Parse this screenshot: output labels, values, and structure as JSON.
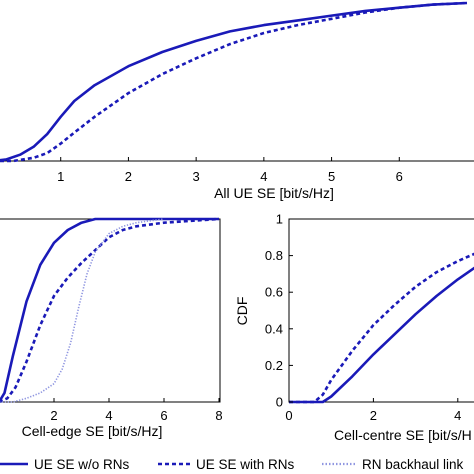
{
  "chart_data": [
    {
      "type": "line",
      "panel": "top",
      "xlabel": "All UE SE [bit/s/Hz]",
      "ylabel": "",
      "xlim": [
        0,
        7
      ],
      "ylim": [
        0,
        1
      ],
      "xticks": [
        "1",
        "2",
        "3",
        "4",
        "5",
        "6"
      ],
      "grid": false,
      "series": [
        {
          "name": "UE SE w/o RNs",
          "style": "solid",
          "x": [
            0.0,
            0.2,
            0.4,
            0.6,
            0.8,
            1.0,
            1.2,
            1.5,
            2.0,
            2.5,
            3.0,
            3.5,
            4.0,
            4.5,
            5.0,
            5.5,
            6.0,
            6.5,
            7.0
          ],
          "y": [
            0.0,
            0.01,
            0.04,
            0.09,
            0.17,
            0.28,
            0.38,
            0.48,
            0.6,
            0.69,
            0.76,
            0.82,
            0.86,
            0.89,
            0.92,
            0.95,
            0.97,
            0.99,
            1.0
          ]
        },
        {
          "name": "UE SE with RNs",
          "style": "dashed",
          "x": [
            0.0,
            0.3,
            0.6,
            0.8,
            1.0,
            1.2,
            1.5,
            2.0,
            2.5,
            3.0,
            3.5,
            4.0,
            4.5,
            5.0,
            5.5,
            6.0,
            6.5,
            7.0
          ],
          "y": [
            0.0,
            0.0,
            0.02,
            0.05,
            0.11,
            0.18,
            0.28,
            0.43,
            0.55,
            0.65,
            0.74,
            0.81,
            0.86,
            0.9,
            0.94,
            0.97,
            0.99,
            1.0
          ]
        }
      ]
    },
    {
      "type": "line",
      "panel": "bottom-left",
      "xlabel": "Cell-edge SE [bit/s/Hz]",
      "ylabel": "",
      "xlim": [
        0,
        8
      ],
      "ylim": [
        0,
        1
      ],
      "xticks": [
        "2",
        "4",
        "6",
        "8"
      ],
      "grid": false,
      "series": [
        {
          "name": "UE SE w/o RNs",
          "style": "solid",
          "x": [
            0.0,
            0.2,
            0.5,
            1.0,
            1.5,
            2.0,
            2.5,
            3.0,
            3.5,
            4.0,
            5.0,
            6.0,
            8.0
          ],
          "y": [
            0.0,
            0.05,
            0.25,
            0.55,
            0.75,
            0.87,
            0.94,
            0.98,
            1.0,
            1.0,
            1.0,
            1.0,
            1.0
          ]
        },
        {
          "name": "UE SE with RNs",
          "style": "dashed",
          "x": [
            0.0,
            0.3,
            0.6,
            1.0,
            1.5,
            2.0,
            2.5,
            3.0,
            3.5,
            4.0,
            4.5,
            5.0,
            6.0,
            7.0,
            8.0
          ],
          "y": [
            0.0,
            0.02,
            0.08,
            0.22,
            0.42,
            0.58,
            0.68,
            0.76,
            0.83,
            0.9,
            0.94,
            0.96,
            0.98,
            0.99,
            1.0
          ]
        },
        {
          "name": "RN backhaul link",
          "style": "dotted",
          "x": [
            0.0,
            0.5,
            1.0,
            1.5,
            2.0,
            2.3,
            2.6,
            2.9,
            3.2,
            3.5,
            4.0,
            4.5,
            5.0,
            5.5,
            6.0
          ],
          "y": [
            0.0,
            0.0,
            0.02,
            0.05,
            0.1,
            0.18,
            0.32,
            0.52,
            0.7,
            0.82,
            0.92,
            0.96,
            0.98,
            0.99,
            1.0
          ]
        }
      ]
    },
    {
      "type": "line",
      "panel": "bottom-right",
      "xlabel": "Cell-centre SE [bit/s/H",
      "ylabel": "CDF",
      "xlim": [
        0,
        5
      ],
      "ylim": [
        0,
        1
      ],
      "xticks": [
        "0",
        "2",
        "4"
      ],
      "yticks": [
        "0",
        "0.2",
        "0.4",
        "0.6",
        "0.8",
        "1"
      ],
      "grid": false,
      "series": [
        {
          "name": "UE SE w/o RNs",
          "style": "solid",
          "x": [
            0.0,
            0.8,
            1.0,
            1.5,
            2.0,
            2.5,
            3.0,
            3.5,
            4.0,
            4.5,
            5.0
          ],
          "y": [
            0.0,
            0.0,
            0.03,
            0.14,
            0.26,
            0.37,
            0.48,
            0.58,
            0.67,
            0.75,
            0.8
          ]
        },
        {
          "name": "UE SE with RNs",
          "style": "dashed",
          "x": [
            0.0,
            0.6,
            0.8,
            1.0,
            1.5,
            2.0,
            2.5,
            3.0,
            3.5,
            4.0,
            4.5,
            5.0
          ],
          "y": [
            0.0,
            0.0,
            0.04,
            0.12,
            0.28,
            0.42,
            0.53,
            0.63,
            0.71,
            0.77,
            0.82,
            0.85
          ]
        }
      ]
    }
  ],
  "legend": {
    "placement": "bottom",
    "items": [
      {
        "label": "UE SE w/o RNs",
        "style": "solid"
      },
      {
        "label": "UE SE with RNs",
        "style": "dashed"
      },
      {
        "label": "RN backhaul link",
        "style": "dotted"
      }
    ]
  },
  "colors": {
    "series": "#1a1ab8",
    "backhaul": "#8f96e0",
    "axis": "#000000"
  }
}
